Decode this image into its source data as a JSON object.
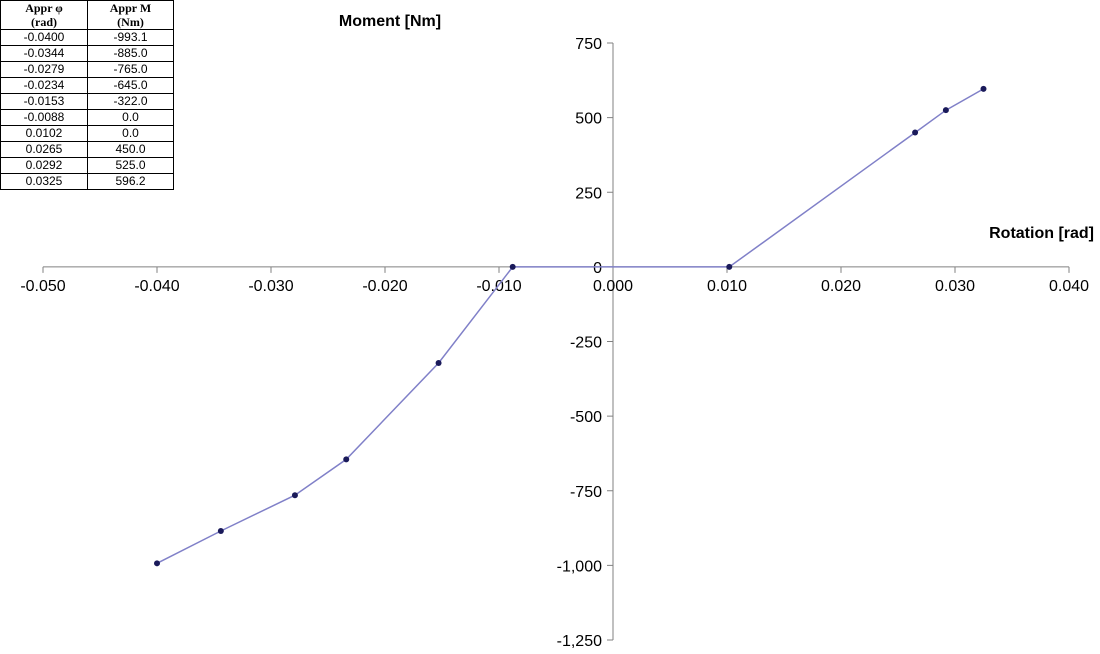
{
  "table": {
    "headers": [
      "Appr φ (rad)",
      "Appr M (Nm)"
    ],
    "header_lines": [
      [
        "Appr φ",
        "(rad)"
      ],
      [
        "Appr M",
        "(Nm)"
      ]
    ],
    "rows": [
      [
        "-0.0400",
        "-993.1"
      ],
      [
        "-0.0344",
        "-885.0"
      ],
      [
        "-0.0279",
        "-765.0"
      ],
      [
        "-0.0234",
        "-645.0"
      ],
      [
        "-0.0153",
        "-322.0"
      ],
      [
        "-0.0088",
        "0.0"
      ],
      [
        "0.0102",
        "0.0"
      ],
      [
        "0.0265",
        "450.0"
      ],
      [
        "0.0292",
        "525.0"
      ],
      [
        "0.0325",
        "596.2"
      ]
    ]
  },
  "chart_data": {
    "type": "line",
    "ylabel": "Moment [Nm]",
    "xlabel": "Rotation [rad]",
    "xlim": [
      -0.05,
      0.04
    ],
    "ylim": [
      -1250,
      750
    ],
    "xticks": [
      -0.05,
      -0.04,
      -0.03,
      -0.02,
      -0.01,
      0.0,
      0.01,
      0.02,
      0.03,
      0.04
    ],
    "xtick_labels": [
      "-0.050",
      "-0.040",
      "-0.030",
      "-0.020",
      "-0.010",
      "0.000",
      "0.010",
      "0.020",
      "0.030",
      "0.040"
    ],
    "yticks": [
      750,
      500,
      250,
      0,
      -250,
      -500,
      -750,
      -1000,
      -1250
    ],
    "ytick_labels": [
      "750",
      "500",
      "250",
      "0",
      "-250",
      "-500",
      "-750",
      "-1,000",
      "-1,250"
    ],
    "grid": false,
    "line_color": "#8080c8",
    "marker_color": "#1a1a5a",
    "series": [
      {
        "x": [
          -0.04,
          -0.0344,
          -0.0279,
          -0.0234,
          -0.0153,
          -0.0088,
          0.0102,
          0.0265,
          0.0292,
          0.0325
        ],
        "y": [
          -993.1,
          -885.0,
          -765.0,
          -645.0,
          -322.0,
          0.0,
          0.0,
          450.0,
          525.0,
          596.2
        ]
      }
    ]
  }
}
